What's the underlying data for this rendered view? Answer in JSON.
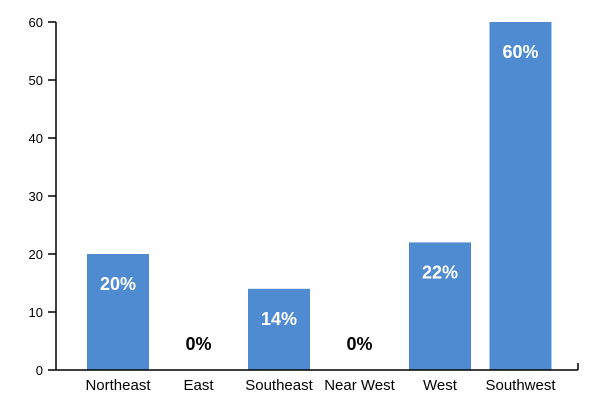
{
  "chart_data": {
    "type": "bar",
    "categories": [
      "Northeast",
      "East",
      "Southeast",
      "Near West",
      "West",
      "Southwest"
    ],
    "values": [
      20,
      0,
      14,
      0,
      22,
      60
    ],
    "data_labels": [
      "20%",
      "0%",
      "14%",
      "0%",
      "22%",
      "60%"
    ],
    "y_ticks": [
      "0",
      "10",
      "20",
      "30",
      "40",
      "50",
      "60"
    ],
    "ylim": [
      0,
      60
    ],
    "title": "",
    "xlabel": "",
    "ylabel": "",
    "grid": false,
    "bar_color": "#4f8bd0",
    "label_inside_color": "#ffffff",
    "label_outside_color": "#000000",
    "axis_color": "#000000"
  }
}
